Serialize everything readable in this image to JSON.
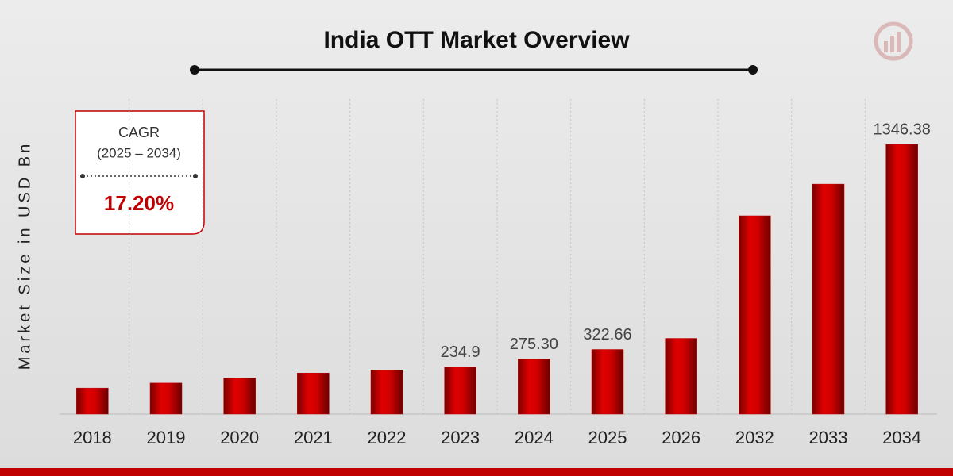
{
  "chart_data": {
    "type": "bar",
    "title": "India OTT Market Overview",
    "y_label": "Market Size in USD Bn",
    "categories": [
      "2018",
      "2019",
      "2020",
      "2021",
      "2022",
      "2023",
      "2024",
      "2025",
      "2026",
      "2032",
      "2033",
      "2034"
    ],
    "values": [
      130,
      155,
      180,
      205,
      220,
      234.9,
      275.3,
      322.66,
      378,
      990,
      1148,
      1346.38
    ],
    "value_labels": [
      null,
      null,
      null,
      null,
      null,
      "234.9",
      "275.30",
      "322.66",
      null,
      null,
      null,
      "1346.38"
    ],
    "color": "#c00000",
    "annotation": {
      "label": "CAGR",
      "period": "(2025 – 2034)",
      "value": "17.20%"
    }
  }
}
